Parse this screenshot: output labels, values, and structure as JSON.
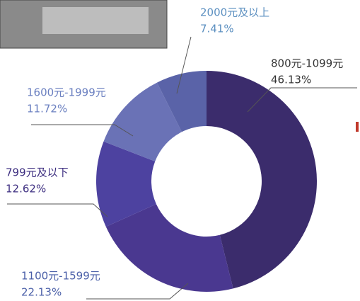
{
  "chart_data": {
    "type": "donut",
    "categories": [
      "800元-1099元",
      "1100元-1599元",
      "799元及以下",
      "1600元-1999元",
      "2000元及以上"
    ],
    "values": [
      46.13,
      22.13,
      12.62,
      11.72,
      7.41
    ],
    "value_labels": [
      "46.13%",
      "22.13%",
      "12.62%",
      "11.72%",
      "7.41%"
    ],
    "colors": [
      "#3b2c6c",
      "#4a3890",
      "#4d42a0",
      "#6a72b6",
      "#5a63a8"
    ]
  }
}
